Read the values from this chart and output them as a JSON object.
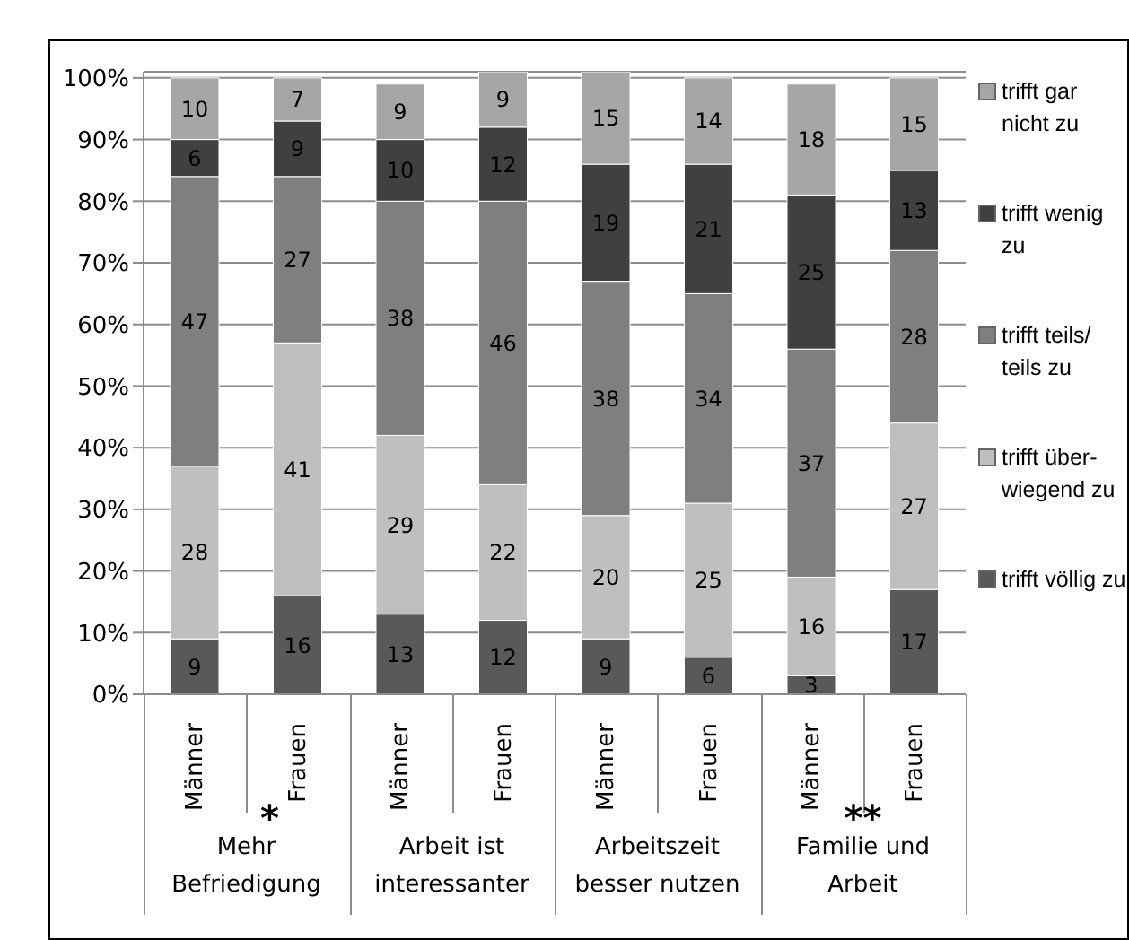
{
  "chart_data": {
    "type": "bar",
    "stacked": true,
    "categories": [
      "Männer",
      "Frauen",
      "Männer",
      "Frauen",
      "Männer",
      "Frauen",
      "Männer",
      "Frauen"
    ],
    "series": [
      {
        "name": "trifft völlig zu",
        "color": "#595959",
        "values": [
          9,
          16,
          13,
          12,
          9,
          6,
          3,
          17
        ]
      },
      {
        "name": "trifft über-wiegend zu",
        "color": "#bfbfbf",
        "values": [
          28,
          41,
          29,
          22,
          20,
          25,
          16,
          27
        ]
      },
      {
        "name": "trifft teils/ teils zu",
        "color": "#7f7f7f",
        "values": [
          47,
          27,
          38,
          46,
          38,
          34,
          37,
          28
        ]
      },
      {
        "name": "trifft wenig zu",
        "color": "#404040",
        "values": [
          6,
          9,
          10,
          12,
          19,
          21,
          25,
          13
        ]
      },
      {
        "name": "trifft gar nicht zu",
        "color": "#a6a6a6",
        "values": [
          10,
          7,
          9,
          9,
          15,
          14,
          18,
          15
        ]
      }
    ],
    "ylim": [
      0,
      101
    ],
    "yticks": [
      {
        "value": 0,
        "label": "0%"
      },
      {
        "value": 10,
        "label": "10%"
      },
      {
        "value": 20,
        "label": "20%"
      },
      {
        "value": 30,
        "label": "30%"
      },
      {
        "value": 40,
        "label": "40%"
      },
      {
        "value": 50,
        "label": "50%"
      },
      {
        "value": 60,
        "label": "60%"
      },
      {
        "value": 70,
        "label": "70%"
      },
      {
        "value": 80,
        "label": "80%"
      },
      {
        "value": 90,
        "label": "90%"
      },
      {
        "value": 100,
        "label": "100%"
      }
    ],
    "grid": "y",
    "legend": "right",
    "data_labels": true,
    "annotations": [
      "Mehr Befriedigung",
      "Arbeit ist interessanter",
      "Arbeitszeit besser nutzen",
      "Familie und Arbeit",
      "*",
      "**"
    ]
  }
}
